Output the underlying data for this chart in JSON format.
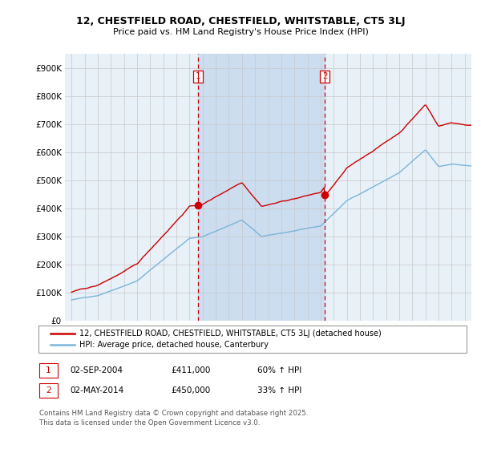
{
  "title_line1": "12, CHESTFIELD ROAD, CHESTFIELD, WHITSTABLE, CT5 3LJ",
  "title_line2": "Price paid vs. HM Land Registry's House Price Index (HPI)",
  "background_color": "#ffffff",
  "plot_bg_color": "#e8f0f8",
  "shade_color": "#ccddf0",
  "ylabel": "",
  "xlabel": "",
  "ylim": [
    0,
    950000
  ],
  "yticks": [
    0,
    100000,
    200000,
    300000,
    400000,
    500000,
    600000,
    700000,
    800000,
    900000
  ],
  "ytick_labels": [
    "£0",
    "£100K",
    "£200K",
    "£300K",
    "£400K",
    "£500K",
    "£600K",
    "£700K",
    "£800K",
    "£900K"
  ],
  "sale1_date": 2004.67,
  "sale1_price": 411000,
  "sale1_label": "1",
  "sale2_date": 2014.33,
  "sale2_price": 450000,
  "sale2_label": "2",
  "hpi_color": "#7ab4d8",
  "price_color": "#cc0000",
  "vline_color": "#cc0000",
  "legend_line1": "12, CHESTFIELD ROAD, CHESTFIELD, WHITSTABLE, CT5 3LJ (detached house)",
  "legend_line2": "HPI: Average price, detached house, Canterbury",
  "table_row1": [
    "1",
    "02-SEP-2004",
    "£411,000",
    "60% ↑ HPI"
  ],
  "table_row2": [
    "2",
    "02-MAY-2014",
    "£450,000",
    "33% ↑ HPI"
  ],
  "footer": "Contains HM Land Registry data © Crown copyright and database right 2025.\nThis data is licensed under the Open Government Licence v3.0.",
  "xmin": 1994.5,
  "xmax": 2025.5
}
